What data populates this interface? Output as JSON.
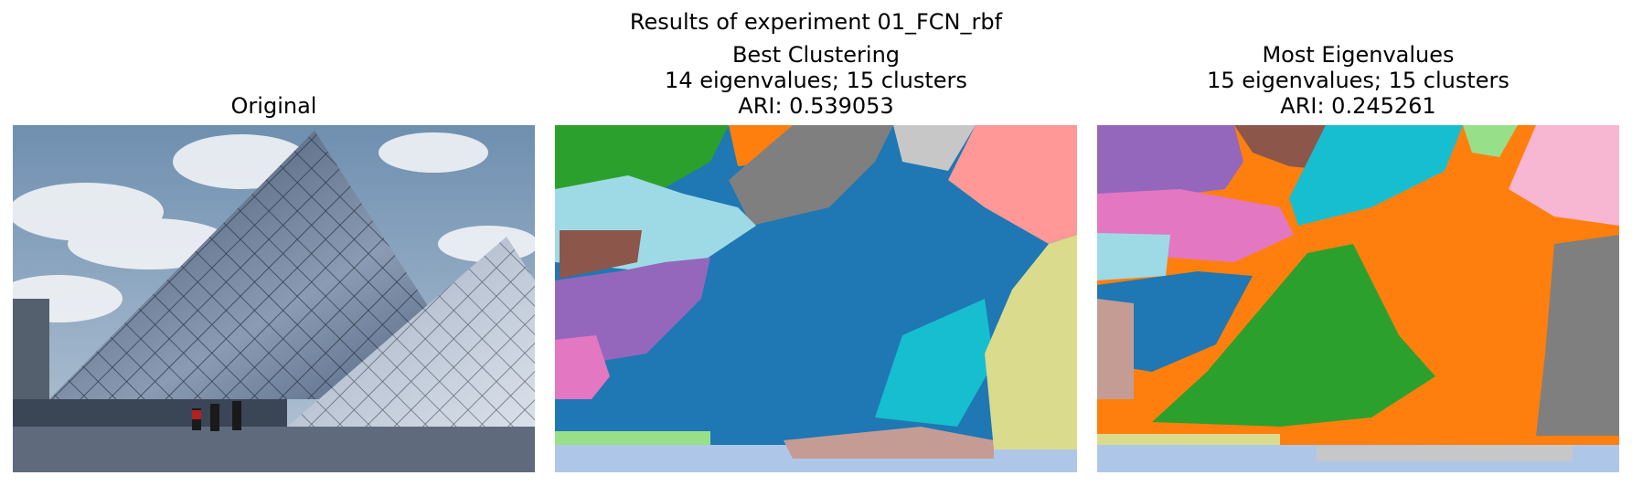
{
  "figure": {
    "suptitle": "Results of experiment 01_FCN_rbf"
  },
  "panels": [
    {
      "title_lines": [
        "Original"
      ]
    },
    {
      "title_lines": [
        "Best Clustering",
        "14 eigenvalues; 15 clusters",
        "ARI: 0.539053"
      ]
    },
    {
      "title_lines": [
        "Most Eigenvalues",
        "15 eigenvalues; 15 clusters",
        "ARI: 0.245261"
      ]
    }
  ],
  "chart_data": [
    {
      "type": "image",
      "title": "Original",
      "content": "photo: glass pyramid under cloudy sky"
    },
    {
      "type": "heatmap",
      "title": "Best Clustering",
      "eigenvalues": 14,
      "clusters": 15,
      "ari": 0.539053,
      "colormap": [
        "#1f77b4",
        "#aec7e8",
        "#ff7f0e",
        "#2ca02c",
        "#98df8a",
        "#d62728",
        "#ff9896",
        "#9467bd",
        "#c5b0d5",
        "#8c564b",
        "#c49c94",
        "#e377c2",
        "#f7b6d2",
        "#7f7f7f",
        "#c7c7c7",
        "#bcbd22",
        "#dbdb8d",
        "#17becf",
        "#9edae5"
      ]
    },
    {
      "type": "heatmap",
      "title": "Most Eigenvalues",
      "eigenvalues": 15,
      "clusters": 15,
      "ari": 0.245261,
      "colormap": [
        "#1f77b4",
        "#aec7e8",
        "#ff7f0e",
        "#2ca02c",
        "#98df8a",
        "#d62728",
        "#ff9896",
        "#9467bd",
        "#c5b0d5",
        "#8c564b",
        "#c49c94",
        "#e377c2",
        "#f7b6d2",
        "#7f7f7f",
        "#c7c7c7",
        "#bcbd22",
        "#dbdb8d",
        "#17becf",
        "#9edae5"
      ]
    }
  ]
}
